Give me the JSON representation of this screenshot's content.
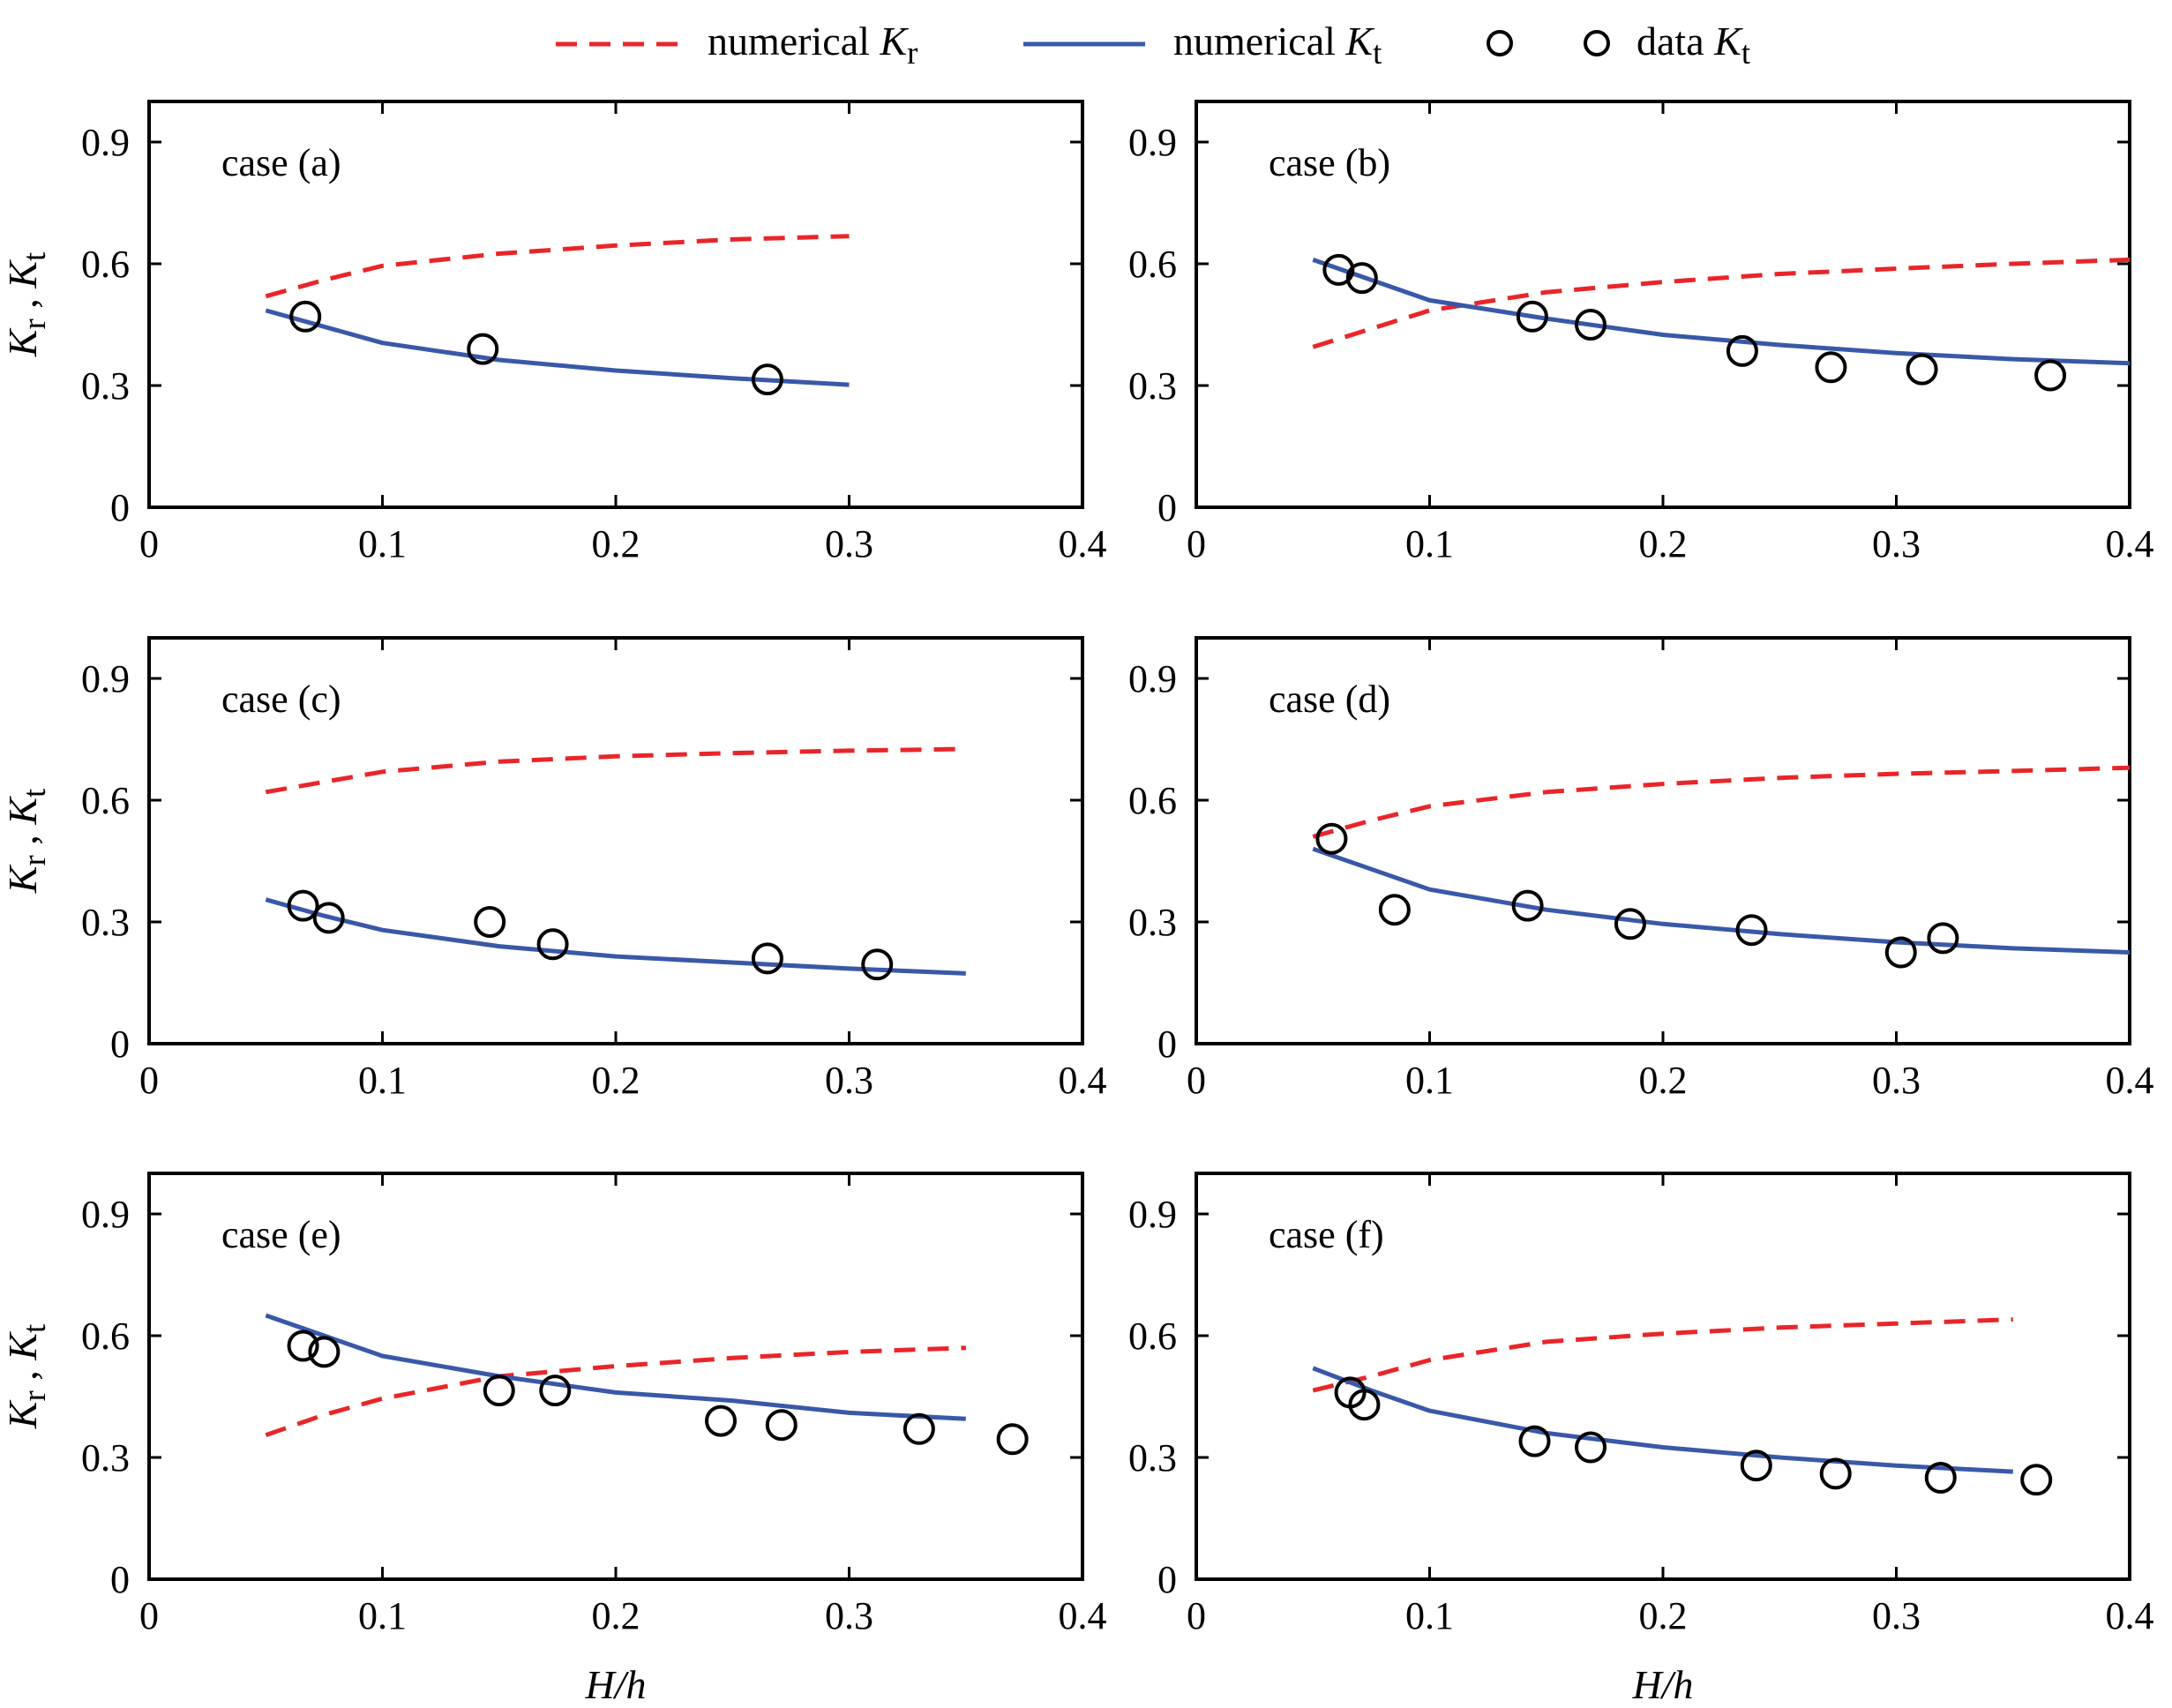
{
  "figure": {
    "colors": {
      "kr": "#e8262a",
      "kt": "#3a58a8",
      "data": "#000000"
    }
  },
  "chart_data": [
    {
      "type": "line",
      "title": "case (a)",
      "xlabel": "",
      "ylabel": "Kr , Kt",
      "xlim": [
        0,
        0.4
      ],
      "ylim": [
        0,
        1.0
      ],
      "xticks": [
        "0",
        "0.1",
        "0.2",
        "0.3",
        "0.4"
      ],
      "yticks": [
        "0",
        "0.3",
        "0.6",
        "0.9"
      ],
      "series": [
        {
          "name": "numerical Kr",
          "style": "dashed",
          "x": [
            0.05,
            0.075,
            0.1,
            0.15,
            0.2,
            0.25,
            0.3
          ],
          "y": [
            0.52,
            0.56,
            0.595,
            0.625,
            0.645,
            0.66,
            0.668
          ]
        },
        {
          "name": "numerical Kt",
          "style": "solid",
          "x": [
            0.05,
            0.075,
            0.1,
            0.15,
            0.2,
            0.25,
            0.3
          ],
          "y": [
            0.485,
            0.445,
            0.405,
            0.363,
            0.337,
            0.318,
            0.302
          ]
        },
        {
          "name": "data Kt",
          "style": "markers",
          "x": [
            0.067,
            0.143,
            0.265
          ],
          "y": [
            0.47,
            0.39,
            0.315
          ]
        }
      ]
    },
    {
      "type": "line",
      "title": "case (b)",
      "xlabel": "",
      "ylabel": "",
      "xlim": [
        0,
        0.4
      ],
      "ylim": [
        0,
        1.0
      ],
      "xticks": [
        "0",
        "0.1",
        "0.2",
        "0.3",
        "0.4"
      ],
      "yticks": [
        "0",
        "0.3",
        "0.6",
        "0.9"
      ],
      "series": [
        {
          "name": "numerical Kr",
          "style": "dashed",
          "x": [
            0.05,
            0.075,
            0.1,
            0.15,
            0.2,
            0.25,
            0.3,
            0.35,
            0.4
          ],
          "y": [
            0.395,
            0.44,
            0.485,
            0.53,
            0.555,
            0.575,
            0.588,
            0.6,
            0.61
          ]
        },
        {
          "name": "numerical Kt",
          "style": "solid",
          "x": [
            0.05,
            0.075,
            0.1,
            0.15,
            0.2,
            0.25,
            0.3,
            0.35,
            0.4
          ],
          "y": [
            0.61,
            0.56,
            0.51,
            0.465,
            0.425,
            0.4,
            0.38,
            0.365,
            0.355
          ]
        },
        {
          "name": "data Kt",
          "style": "markers",
          "x": [
            0.061,
            0.071,
            0.144,
            0.169,
            0.234,
            0.272,
            0.311,
            0.366
          ],
          "y": [
            0.585,
            0.565,
            0.47,
            0.45,
            0.385,
            0.345,
            0.34,
            0.325
          ]
        }
      ]
    },
    {
      "type": "line",
      "title": "case (c)",
      "xlabel": "",
      "ylabel": "Kr , Kt",
      "xlim": [
        0,
        0.4
      ],
      "ylim": [
        0,
        1.0
      ],
      "xticks": [
        "0",
        "0.1",
        "0.2",
        "0.3",
        "0.4"
      ],
      "yticks": [
        "0",
        "0.3",
        "0.6",
        "0.9"
      ],
      "series": [
        {
          "name": "numerical Kr",
          "style": "dashed",
          "x": [
            0.05,
            0.075,
            0.1,
            0.15,
            0.2,
            0.25,
            0.3,
            0.35
          ],
          "y": [
            0.62,
            0.645,
            0.67,
            0.695,
            0.708,
            0.716,
            0.722,
            0.726
          ]
        },
        {
          "name": "numerical Kt",
          "style": "solid",
          "x": [
            0.05,
            0.075,
            0.1,
            0.15,
            0.2,
            0.25,
            0.3,
            0.35
          ],
          "y": [
            0.355,
            0.315,
            0.28,
            0.24,
            0.215,
            0.2,
            0.185,
            0.173
          ]
        },
        {
          "name": "data Kt",
          "style": "markers",
          "x": [
            0.066,
            0.077,
            0.146,
            0.173,
            0.265,
            0.312
          ],
          "y": [
            0.34,
            0.31,
            0.3,
            0.245,
            0.21,
            0.195
          ]
        }
      ]
    },
    {
      "type": "line",
      "title": "case (d)",
      "xlabel": "",
      "ylabel": "",
      "xlim": [
        0,
        0.4
      ],
      "ylim": [
        0,
        1.0
      ],
      "xticks": [
        "0",
        "0.1",
        "0.2",
        "0.3",
        "0.4"
      ],
      "yticks": [
        "0",
        "0.3",
        "0.6",
        "0.9"
      ],
      "series": [
        {
          "name": "numerical Kr",
          "style": "dashed",
          "x": [
            0.05,
            0.075,
            0.1,
            0.15,
            0.2,
            0.25,
            0.3,
            0.35,
            0.4
          ],
          "y": [
            0.51,
            0.55,
            0.585,
            0.62,
            0.64,
            0.655,
            0.665,
            0.672,
            0.68
          ]
        },
        {
          "name": "numerical Kt",
          "style": "solid",
          "x": [
            0.05,
            0.075,
            0.1,
            0.15,
            0.2,
            0.25,
            0.3,
            0.35,
            0.4
          ],
          "y": [
            0.48,
            0.43,
            0.38,
            0.33,
            0.295,
            0.27,
            0.25,
            0.235,
            0.225
          ]
        },
        {
          "name": "data Kt",
          "style": "markers",
          "x": [
            0.058,
            0.085,
            0.142,
            0.186,
            0.238,
            0.302,
            0.32
          ],
          "y": [
            0.505,
            0.33,
            0.34,
            0.295,
            0.28,
            0.225,
            0.26
          ]
        }
      ]
    },
    {
      "type": "line",
      "title": "case (e)",
      "xlabel": "H/h",
      "ylabel": "Kr , Kt",
      "xlim": [
        0,
        0.4
      ],
      "ylim": [
        0,
        1.0
      ],
      "xticks": [
        "0",
        "0.1",
        "0.2",
        "0.3",
        "0.4"
      ],
      "yticks": [
        "0",
        "0.3",
        "0.6",
        "0.9"
      ],
      "series": [
        {
          "name": "numerical Kr",
          "style": "dashed",
          "x": [
            0.05,
            0.075,
            0.1,
            0.15,
            0.2,
            0.25,
            0.3,
            0.35
          ],
          "y": [
            0.355,
            0.405,
            0.445,
            0.5,
            0.525,
            0.545,
            0.56,
            0.57
          ]
        },
        {
          "name": "numerical Kt",
          "style": "solid",
          "x": [
            0.05,
            0.075,
            0.1,
            0.15,
            0.2,
            0.25,
            0.3,
            0.35
          ],
          "y": [
            0.65,
            0.6,
            0.55,
            0.5,
            0.46,
            0.44,
            0.41,
            0.395
          ]
        },
        {
          "name": "data Kt",
          "style": "markers",
          "x": [
            0.066,
            0.075,
            0.15,
            0.174,
            0.245,
            0.271,
            0.33,
            0.37
          ],
          "y": [
            0.575,
            0.56,
            0.465,
            0.465,
            0.39,
            0.38,
            0.37,
            0.345
          ]
        }
      ]
    },
    {
      "type": "line",
      "title": "case (f)",
      "xlabel": "H/h",
      "ylabel": "",
      "xlim": [
        0,
        0.4
      ],
      "ylim": [
        0,
        1.0
      ],
      "xticks": [
        "0",
        "0.1",
        "0.2",
        "0.3",
        "0.4"
      ],
      "yticks": [
        "0",
        "0.3",
        "0.6",
        "0.9"
      ],
      "series": [
        {
          "name": "numerical Kr",
          "style": "dashed",
          "x": [
            0.05,
            0.075,
            0.1,
            0.15,
            0.2,
            0.25,
            0.3,
            0.35
          ],
          "y": [
            0.465,
            0.5,
            0.54,
            0.585,
            0.605,
            0.62,
            0.63,
            0.64
          ]
        },
        {
          "name": "numerical Kt",
          "style": "solid",
          "x": [
            0.05,
            0.075,
            0.1,
            0.15,
            0.2,
            0.25,
            0.3,
            0.35
          ],
          "y": [
            0.52,
            0.465,
            0.415,
            0.36,
            0.325,
            0.3,
            0.28,
            0.265
          ]
        },
        {
          "name": "data Kt",
          "style": "markers",
          "x": [
            0.066,
            0.072,
            0.145,
            0.169,
            0.24,
            0.274,
            0.319,
            0.36
          ],
          "y": [
            0.46,
            0.43,
            0.34,
            0.325,
            0.28,
            0.26,
            0.25,
            0.245
          ]
        }
      ]
    }
  ],
  "legend": {
    "items": [
      {
        "style": "dashed",
        "label": "numerical",
        "sym": "K",
        "sub": "r"
      },
      {
        "style": "solid",
        "label": "numerical",
        "sym": "K",
        "sub": "t"
      },
      {
        "style": "marker",
        "label": "",
        "sym": "",
        "sub": ""
      },
      {
        "style": "marker",
        "label": "data",
        "sym": "K",
        "sub": "t"
      }
    ]
  },
  "ylabel_parts": {
    "a": "K",
    "a_sub": "r",
    "sep": " , ",
    "b": "K",
    "b_sub": "t"
  }
}
